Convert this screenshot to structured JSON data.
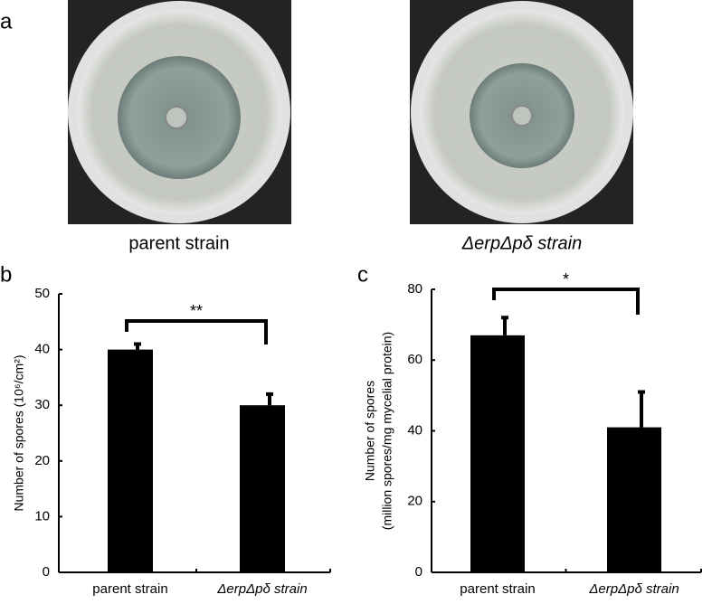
{
  "panel_a": {
    "panel_label": "a",
    "captions": [
      "parent strain",
      "ΔerpΔpδ strain"
    ]
  },
  "chart_data": [
    {
      "type": "bar",
      "panel_label": "b",
      "ylabel": [
        "Number of spores (10⁶/cm²)"
      ],
      "categories": [
        "parent strain",
        "ΔerpΔpδ strain"
      ],
      "values": [
        40,
        30
      ],
      "errors": [
        1,
        2
      ],
      "color": "#000000",
      "ylim": [
        0,
        50
      ],
      "yticks": [
        0,
        10,
        20,
        30,
        40,
        50
      ],
      "annotation": "**"
    },
    {
      "type": "bar",
      "panel_label": "c",
      "ylabel": [
        "Number of spores",
        "(million spores/mg mycelial protein)"
      ],
      "categories": [
        "parent strain",
        "ΔerpΔpδ strain"
      ],
      "values": [
        67,
        41
      ],
      "errors": [
        5,
        10
      ],
      "color": "#000000",
      "ylim": [
        0,
        80
      ],
      "yticks": [
        0,
        20,
        40,
        60,
        80
      ],
      "annotation": "*"
    }
  ]
}
